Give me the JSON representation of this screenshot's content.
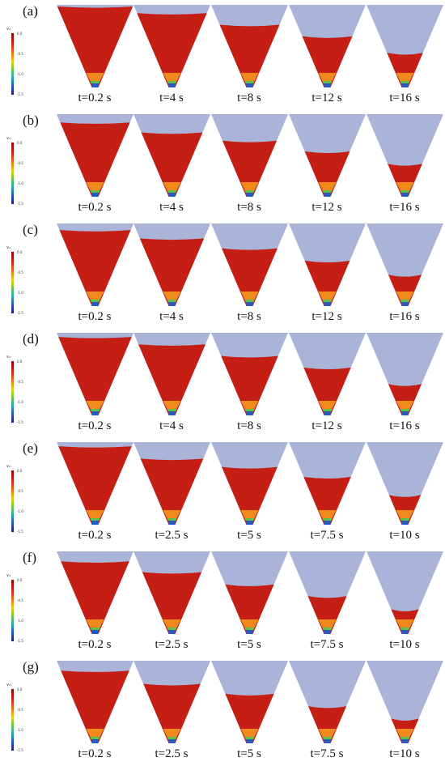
{
  "legend": {
    "title": "v₄",
    "ticks": [
      "0.0",
      "-0.5",
      "-1.0",
      "-1.5"
    ]
  },
  "colors": {
    "hopper": "#aab3d8",
    "particles": "#c51e14",
    "outlet": "#1f5cc8"
  },
  "rows": [
    {
      "label": "(a)",
      "times": [
        "t=0.2 s",
        "t=4 s",
        "t=8 s",
        "t=12 s",
        "t=16 s"
      ],
      "fill": [
        0.98,
        0.9,
        0.76,
        0.62,
        0.42
      ]
    },
    {
      "label": "(b)",
      "times": [
        "t=0.2 s",
        "t=4 s",
        "t=8 s",
        "t=12 s",
        "t=16 s"
      ],
      "fill": [
        0.9,
        0.78,
        0.68,
        0.55,
        0.4
      ]
    },
    {
      "label": "(c)",
      "times": [
        "t=0.2 s",
        "t=4 s",
        "t=8 s",
        "t=12 s",
        "t=16 s"
      ],
      "fill": [
        0.92,
        0.82,
        0.7,
        0.55,
        0.38
      ]
    },
    {
      "label": "(d)",
      "times": [
        "t=0.2 s",
        "t=4 s",
        "t=8 s",
        "t=12 s",
        "t=16 s"
      ],
      "fill": [
        0.95,
        0.86,
        0.72,
        0.58,
        0.38
      ]
    },
    {
      "label": "(e)",
      "times": [
        "t=0.2 s",
        "t=2.5 s",
        "t=5 s",
        "t=7.5 s",
        "t=10 s"
      ],
      "fill": [
        0.95,
        0.8,
        0.7,
        0.58,
        0.36
      ]
    },
    {
      "label": "(f)",
      "times": [
        "t=0.2 s",
        "t=2.5 s",
        "t=5 s",
        "t=7.5 s",
        "t=10 s"
      ],
      "fill": [
        0.88,
        0.75,
        0.6,
        0.46,
        0.3
      ]
    },
    {
      "label": "(g)",
      "times": [
        "t=0.2 s",
        "t=2.5 s",
        "t=5 s",
        "t=7.5 s",
        "t=10 s"
      ],
      "fill": [
        0.88,
        0.72,
        0.6,
        0.45,
        0.3
      ]
    }
  ]
}
